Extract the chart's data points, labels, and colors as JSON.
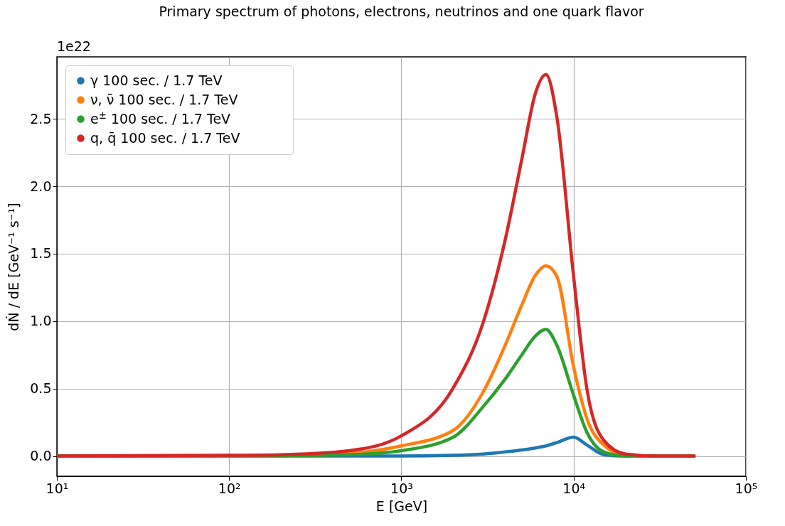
{
  "chart_data": {
    "type": "line",
    "title": "Primary spectrum of photons, electrons, neutrinos and one quark flavor",
    "xlabel": "E [GeV]",
    "ylabel": "dṄ / dE [GeV⁻¹ s⁻¹]",
    "annotations": [
      "1e22"
    ],
    "log": "x",
    "grid": true,
    "legend": "top left",
    "marker": "none",
    "line_style": "solid",
    "xlim": [
      10,
      100000
    ],
    "xticks": [
      {
        "value": 10,
        "label": "10¹"
      },
      {
        "value": 100,
        "label": "10²"
      },
      {
        "value": 1000,
        "label": "10³"
      },
      {
        "value": 10000,
        "label": "10⁴"
      },
      {
        "value": 100000,
        "label": "10⁵"
      }
    ],
    "ylim": [
      -0.15,
      2.96
    ],
    "yticks": [
      {
        "value": 0,
        "label": "0.0"
      },
      {
        "value": 0.5,
        "label": "0.5"
      },
      {
        "value": 1,
        "label": "1.0"
      },
      {
        "value": 1.5,
        "label": "1.5"
      },
      {
        "value": 2,
        "label": "2.0"
      },
      {
        "value": 2.5,
        "label": "2.5"
      }
    ],
    "x": [
      10,
      100,
      200,
      500,
      1000,
      2000,
      3000,
      4000,
      5000,
      6000,
      6900,
      8000,
      10000,
      12000,
      15000,
      20000,
      30000,
      50000
    ],
    "series": [
      {
        "name": "γ  100 sec. / 1.7 TeV",
        "color": "#1f77b4",
        "values": [
          0,
          0,
          0,
          0,
          0,
          0.005,
          0.015,
          0.03,
          0.045,
          0.06,
          0.075,
          0.1,
          0.14,
          0.08,
          0.01,
          0,
          0,
          0
        ]
      },
      {
        "name": "ν, ν̄  100 sec. / 1.7 TeV",
        "color": "#ff7f0e",
        "values": [
          null,
          null,
          0.005,
          0.02,
          0.075,
          0.19,
          0.48,
          0.82,
          1.12,
          1.34,
          1.41,
          1.33,
          0.66,
          0.27,
          0.08,
          0.005,
          0,
          0
        ]
      },
      {
        "name": "e$^{±}$  100 sec. / 1.7 TeV",
        "color": "#2ca02c",
        "values": [
          0,
          0.001,
          0.003,
          0.01,
          0.04,
          0.14,
          0.37,
          0.57,
          0.75,
          0.89,
          0.94,
          0.82,
          0.45,
          0.17,
          0.03,
          0,
          0,
          0
        ]
      },
      {
        "name": "q, q̄  100 sec. / 1.7 TeV",
        "color": "#d62728",
        "values": [
          0,
          0.005,
          0.01,
          0.04,
          0.15,
          0.505,
          1.0,
          1.6,
          2.2,
          2.69,
          2.83,
          2.51,
          1.33,
          0.48,
          0.115,
          0.015,
          0,
          0
        ]
      }
    ]
  }
}
